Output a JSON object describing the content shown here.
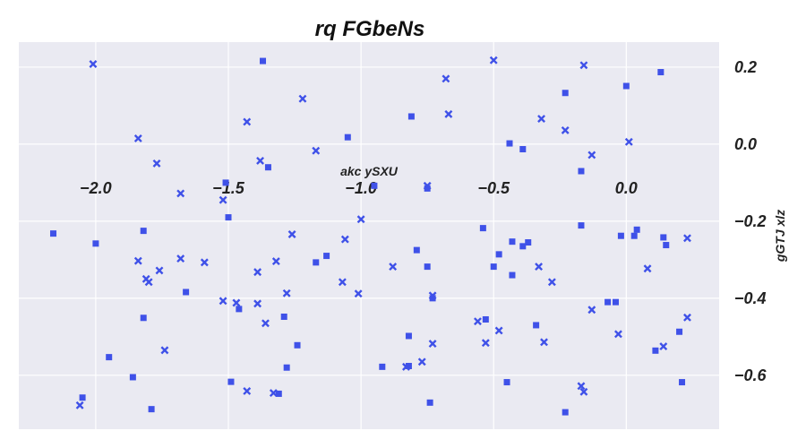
{
  "chart_data": {
    "type": "scatter",
    "title": "rq FGbeNs",
    "xlabel": "akc ySXU",
    "ylabel": "gGTJ xlz",
    "xlim": [
      -2.29,
      0.35
    ],
    "ylim": [
      -0.74,
      0.265
    ],
    "x_ticks": [
      -2.0,
      -1.5,
      -1.0,
      -0.5,
      0.0
    ],
    "x_tick_labels": [
      "−2.0",
      "−1.5",
      "−1.0",
      "−0.5",
      "0.0"
    ],
    "y_ticks": [
      0.2,
      0.0,
      -0.2,
      -0.4,
      -0.6
    ],
    "y_tick_labels": [
      "0.2",
      "0.0",
      "−0.2",
      "−0.4",
      "−0.6"
    ],
    "grid": true,
    "background": "#eaeaf2",
    "marker_color": "#3f51e8",
    "series": [
      {
        "marker": "square",
        "points": [
          [
            -1.37,
            0.216
          ],
          [
            -1.05,
            0.018
          ],
          [
            -1.35,
            -0.06
          ],
          [
            -1.51,
            -0.1
          ],
          [
            -1.5,
            -0.19
          ],
          [
            -2.16,
            -0.232
          ],
          [
            -2.0,
            -0.258
          ],
          [
            -1.82,
            -0.225
          ],
          [
            -1.82,
            -0.451
          ],
          [
            -1.66,
            -0.384
          ],
          [
            -1.95,
            -0.553
          ],
          [
            -1.86,
            -0.605
          ],
          [
            -1.79,
            -0.688
          ],
          [
            -2.05,
            -0.658
          ],
          [
            -1.46,
            -0.428
          ],
          [
            -1.29,
            -0.448
          ],
          [
            -1.24,
            -0.522
          ],
          [
            -1.28,
            -0.58
          ],
          [
            -1.31,
            -0.648
          ],
          [
            -1.49,
            -0.617
          ],
          [
            -1.17,
            -0.307
          ],
          [
            -1.13,
            -0.29
          ],
          [
            -0.95,
            -0.108
          ],
          [
            -0.81,
            0.072
          ],
          [
            -0.75,
            -0.115
          ],
          [
            -0.79,
            -0.275
          ],
          [
            -0.75,
            -0.318
          ],
          [
            -0.73,
            -0.4
          ],
          [
            -0.82,
            -0.498
          ],
          [
            -0.82,
            -0.576
          ],
          [
            -0.92,
            -0.578
          ],
          [
            -0.74,
            -0.671
          ],
          [
            -0.54,
            -0.218
          ],
          [
            -0.5,
            -0.318
          ],
          [
            -0.48,
            -0.286
          ],
          [
            -0.53,
            -0.455
          ],
          [
            -0.45,
            -0.618
          ],
          [
            -0.44,
            0.002
          ],
          [
            -0.39,
            -0.013
          ],
          [
            -0.43,
            -0.253
          ],
          [
            -0.43,
            -0.34
          ],
          [
            -0.39,
            -0.265
          ],
          [
            -0.37,
            -0.255
          ],
          [
            -0.34,
            -0.47
          ],
          [
            -0.23,
            0.133
          ],
          [
            -0.17,
            -0.07
          ],
          [
            -0.17,
            -0.211
          ],
          [
            -0.23,
            -0.696
          ],
          [
            0.0,
            0.151
          ],
          [
            0.13,
            0.187
          ],
          [
            -0.07,
            -0.41
          ],
          [
            -0.04,
            -0.41
          ],
          [
            -0.02,
            -0.238
          ],
          [
            0.03,
            -0.238
          ],
          [
            0.04,
            -0.222
          ],
          [
            0.14,
            -0.242
          ],
          [
            0.15,
            -0.262
          ],
          [
            0.11,
            -0.536
          ],
          [
            0.2,
            -0.487
          ],
          [
            0.21,
            -0.618
          ]
        ]
      },
      {
        "marker": "x",
        "points": [
          [
            -2.01,
            0.208
          ],
          [
            -1.84,
            0.015
          ],
          [
            -1.77,
            -0.05
          ],
          [
            -1.68,
            -0.128
          ],
          [
            -1.43,
            0.058
          ],
          [
            -1.38,
            -0.043
          ],
          [
            -1.22,
            0.118
          ],
          [
            -1.17,
            -0.017
          ],
          [
            -1.52,
            -0.145
          ],
          [
            -1.84,
            -0.303
          ],
          [
            -1.81,
            -0.35
          ],
          [
            -1.8,
            -0.358
          ],
          [
            -1.76,
            -0.328
          ],
          [
            -1.68,
            -0.297
          ],
          [
            -1.59,
            -0.307
          ],
          [
            -1.74,
            -0.535
          ],
          [
            -2.06,
            -0.678
          ],
          [
            -1.52,
            -0.407
          ],
          [
            -1.47,
            -0.412
          ],
          [
            -1.39,
            -0.332
          ],
          [
            -1.39,
            -0.414
          ],
          [
            -1.36,
            -0.465
          ],
          [
            -1.32,
            -0.304
          ],
          [
            -1.26,
            -0.234
          ],
          [
            -1.28,
            -0.387
          ],
          [
            -1.43,
            -0.641
          ],
          [
            -1.33,
            -0.646
          ],
          [
            -1.06,
            -0.247
          ],
          [
            -1.07,
            -0.358
          ],
          [
            -1.01,
            -0.388
          ],
          [
            -1.0,
            -0.195
          ],
          [
            -0.88,
            -0.318
          ],
          [
            -0.83,
            -0.578
          ],
          [
            -0.77,
            -0.565
          ],
          [
            -0.75,
            -0.108
          ],
          [
            -0.73,
            -0.393
          ],
          [
            -0.73,
            -0.518
          ],
          [
            -0.68,
            0.17
          ],
          [
            -0.67,
            0.078
          ],
          [
            -0.56,
            -0.46
          ],
          [
            -0.53,
            -0.516
          ],
          [
            -0.5,
            0.218
          ],
          [
            -0.48,
            -0.484
          ],
          [
            -0.32,
            0.066
          ],
          [
            -0.33,
            -0.318
          ],
          [
            -0.31,
            -0.514
          ],
          [
            -0.28,
            -0.358
          ],
          [
            -0.23,
            0.036
          ],
          [
            -0.16,
            0.205
          ],
          [
            -0.13,
            -0.028
          ],
          [
            -0.17,
            -0.628
          ],
          [
            -0.16,
            -0.643
          ],
          [
            -0.13,
            -0.43
          ],
          [
            0.01,
            0.006
          ],
          [
            -0.03,
            -0.493
          ],
          [
            0.08,
            -0.323
          ],
          [
            0.14,
            -0.525
          ],
          [
            0.23,
            -0.45
          ],
          [
            0.23,
            -0.244
          ]
        ]
      }
    ]
  }
}
